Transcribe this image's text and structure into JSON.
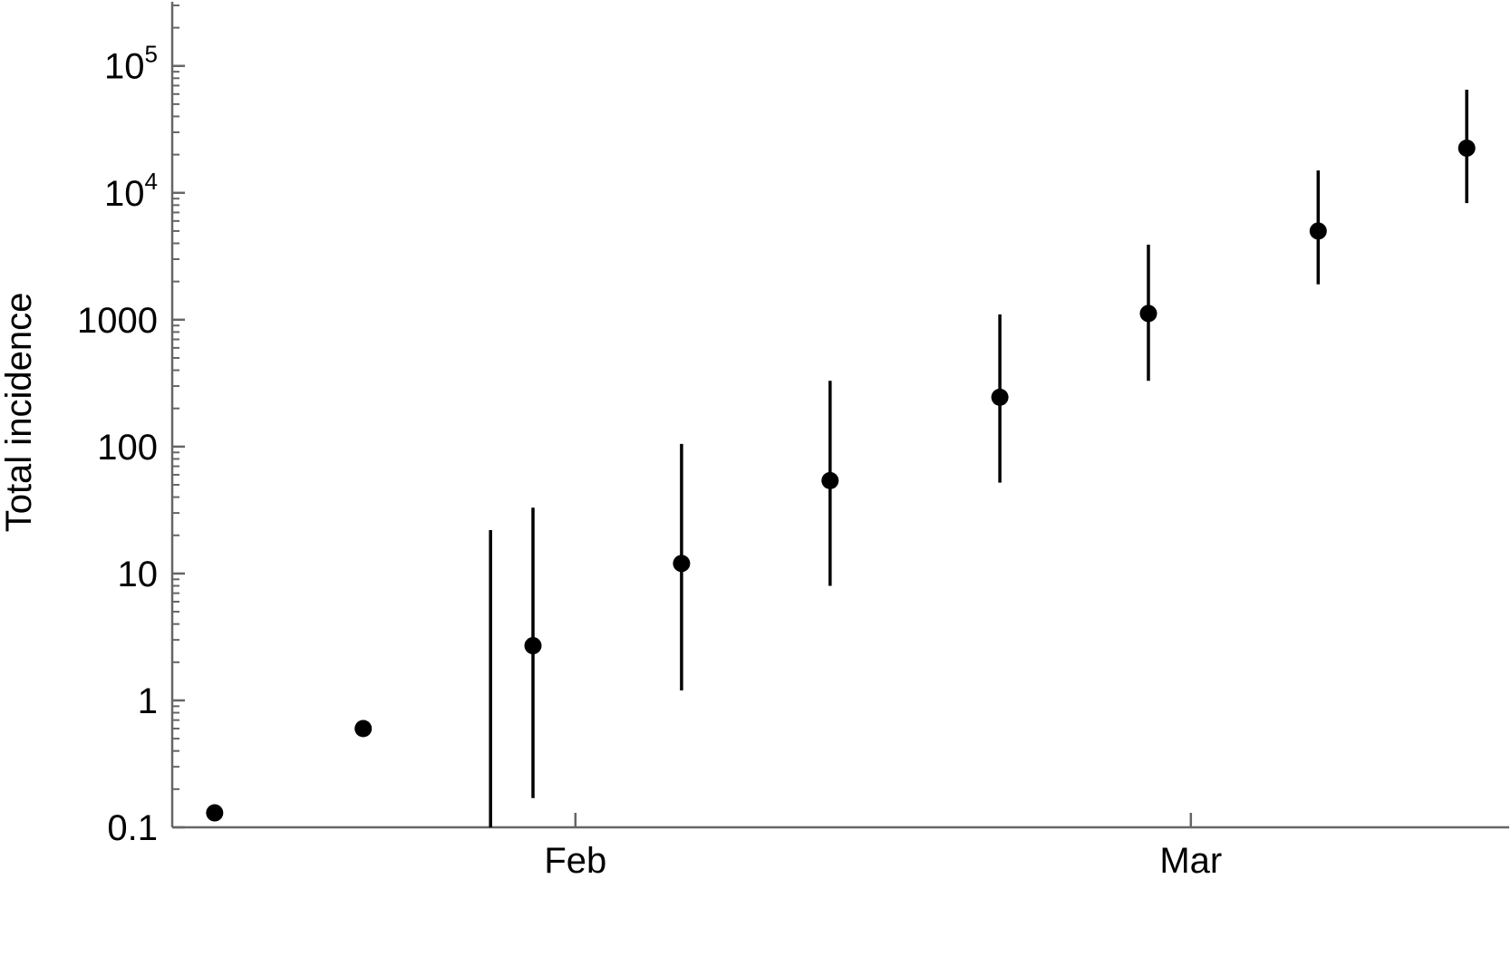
{
  "chart_data": {
    "type": "scatter",
    "title": "",
    "ylabel": "Total incidence",
    "xlabel": "",
    "y_scale": "log",
    "ylim": [
      0.1,
      320000
    ],
    "xlim": [
      "2020-01-13",
      "2020-03-16"
    ],
    "grid": false,
    "x_ticks": [
      {
        "date": "2020-02-01",
        "label": "Feb"
      },
      {
        "date": "2020-03-01",
        "label": "Mar"
      }
    ],
    "y_ticks": [
      {
        "value": 0.1,
        "label": "0.1"
      },
      {
        "value": 1,
        "label": "1"
      },
      {
        "value": 10,
        "label": "10"
      },
      {
        "value": 100,
        "label": "100"
      },
      {
        "value": 1000,
        "label": "1000"
      },
      {
        "value": 10000,
        "base": "10",
        "exp": "4"
      },
      {
        "value": 100000,
        "base": "10",
        "exp": "5"
      }
    ],
    "series": [
      {
        "points": [
          {
            "date": "2020-01-15",
            "y": 0.13
          },
          {
            "date": "2020-01-22",
            "y": 0.6
          },
          {
            "date": "2020-01-30",
            "y": 2.7,
            "low": 0.17,
            "high": 33
          },
          {
            "date": "2020-02-06",
            "y": 12,
            "low": 1.2,
            "high": 105
          },
          {
            "date": "2020-02-13",
            "y": 54,
            "low": 8,
            "high": 330
          },
          {
            "date": "2020-02-21",
            "y": 245,
            "low": 52,
            "high": 1100
          },
          {
            "date": "2020-02-28",
            "y": 1120,
            "low": 330,
            "high": 3900
          },
          {
            "date": "2020-03-07",
            "y": 5000,
            "low": 1900,
            "high": 15000
          },
          {
            "date": "2020-03-14",
            "y": 22500,
            "low": 8300,
            "high": 65000
          }
        ],
        "extra_bars": [
          {
            "date": "2020-01-28",
            "low": 0.1,
            "high": 22
          }
        ]
      }
    ]
  }
}
